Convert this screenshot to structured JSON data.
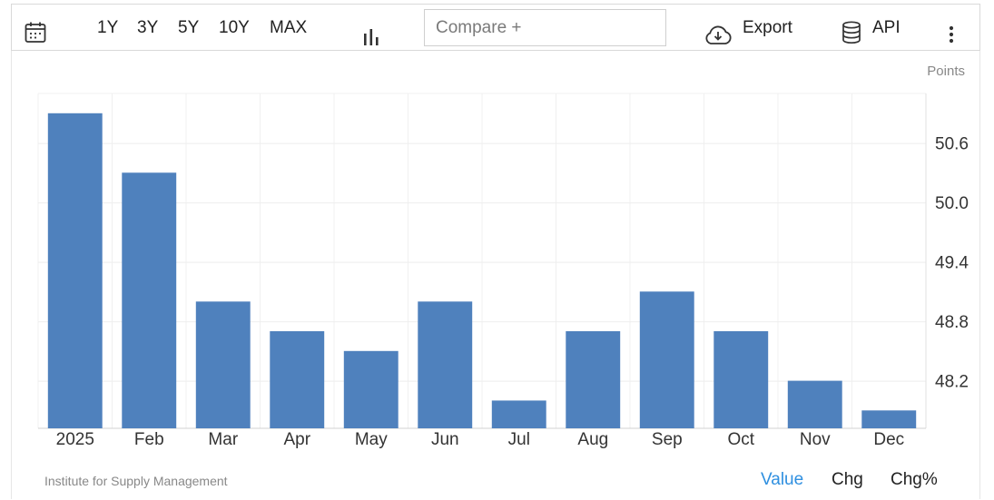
{
  "toolbar": {
    "ranges": [
      "1Y",
      "3Y",
      "5Y",
      "10Y",
      "MAX"
    ],
    "compare_placeholder": "Compare +",
    "export_label": "Export",
    "api_label": "API",
    "icons": {
      "calendar": "calendar-icon",
      "chart_type": "bar-chart-icon",
      "export": "cloud-download-icon",
      "api": "database-icon",
      "more": "more-vertical-icon"
    }
  },
  "footer": {
    "source": "Institute for Supply Management",
    "modes": [
      "Value",
      "Chg",
      "Chg%"
    ],
    "active_mode": "Value",
    "active_color": "#2e8fe0"
  },
  "chart_data": {
    "type": "bar",
    "units": "Points",
    "categories": [
      "2025",
      "Feb",
      "Mar",
      "Apr",
      "May",
      "Jun",
      "Jul",
      "Aug",
      "Sep",
      "Oct",
      "Nov",
      "Dec"
    ],
    "values": [
      50.9,
      50.3,
      49.0,
      48.7,
      48.5,
      49.0,
      48.0,
      48.7,
      49.1,
      48.7,
      48.2,
      47.9
    ],
    "ylim": [
      47.72,
      51.1
    ],
    "yticks": [
      48.2,
      48.8,
      49.4,
      50.0,
      50.6
    ],
    "y_axis_position": "right",
    "grid": true,
    "bar_color": "#4f81bd",
    "title": "",
    "xlabel": "",
    "ylabel": ""
  }
}
